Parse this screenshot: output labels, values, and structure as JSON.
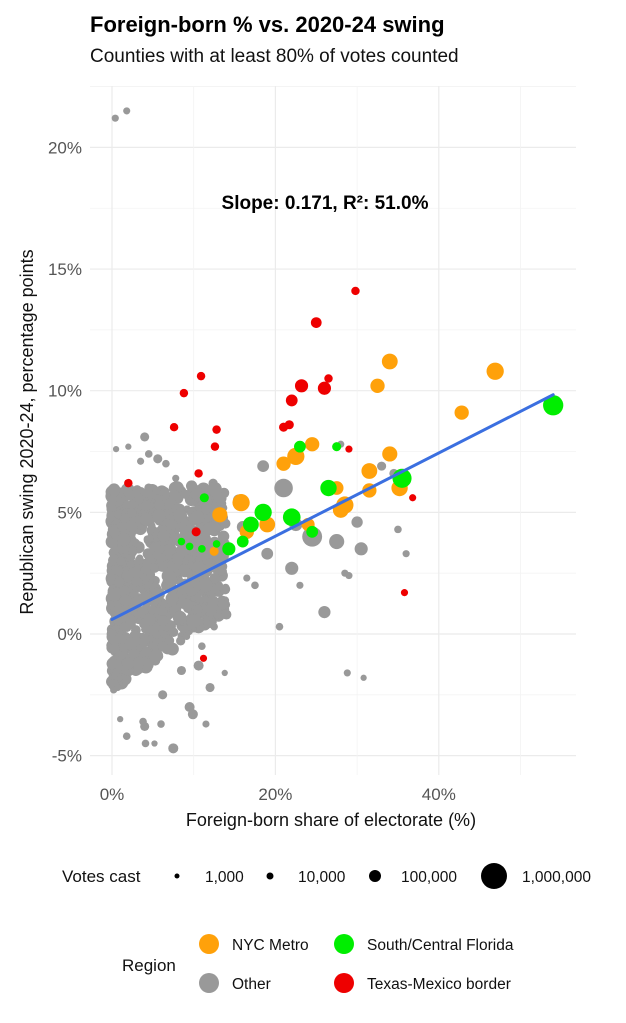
{
  "header": {
    "title": "Foreign-born % vs. 2020-24 swing",
    "subtitle": "Counties with at least 80% of votes counted"
  },
  "chart_data": {
    "type": "scatter",
    "title": "Foreign-born % vs. 2020-24 swing",
    "subtitle": "Counties with at least 80% of votes counted",
    "xlabel": "Foreign-born share of electorate (%)",
    "ylabel": "Republican swing 2020-24, percentage points",
    "xlim": [
      -2.5,
      57
    ],
    "ylim": [
      -5.8,
      22.6
    ],
    "x_ticks": [
      {
        "value": 0,
        "label": "0%"
      },
      {
        "value": 20,
        "label": "20%"
      },
      {
        "value": 40,
        "label": "40%"
      }
    ],
    "y_ticks": [
      {
        "value": -5,
        "label": "-5%"
      },
      {
        "value": 0,
        "label": "0%"
      },
      {
        "value": 5,
        "label": "5%"
      },
      {
        "value": 10,
        "label": "10%"
      },
      {
        "value": 15,
        "label": "15%"
      },
      {
        "value": 20,
        "label": "20%"
      }
    ],
    "grid": true,
    "annotation": "Slope: 0.171, R²: 51.0%",
    "regression": {
      "slope": 0.171,
      "intercept": 0.6,
      "x_range": [
        0,
        54
      ],
      "color": "#3b6fe0"
    },
    "colors": {
      "NYC Metro": "#ffa10a",
      "Other": "#999999",
      "South/Central Florida": "#00ee00",
      "Texas-Mexico border": "#ee0000"
    },
    "size_legend": {
      "title": "Votes cast",
      "entries": [
        {
          "label": "1,000",
          "votes": 1000
        },
        {
          "label": "10,000",
          "votes": 10000
        },
        {
          "label": "100,000",
          "votes": 100000
        },
        {
          "label": "1,000,000",
          "votes": 1000000
        }
      ]
    },
    "color_legend": {
      "title": "Region",
      "entries": [
        {
          "label": "NYC Metro",
          "region": "NYC Metro"
        },
        {
          "label": "South/Central Florida",
          "region": "South/Central Florida"
        },
        {
          "label": "Other",
          "region": "Other"
        },
        {
          "label": "Texas-Mexico border",
          "region": "Texas-Mexico border"
        }
      ]
    },
    "dense_cluster": {
      "region": "Other",
      "x_range": [
        0,
        14
      ],
      "y_range": [
        -2.3,
        6.0
      ],
      "note": "thousands of overlapping small counties"
    },
    "points": [
      {
        "x": 0.4,
        "y": 21.2,
        "votes": 8000,
        "region": "Other"
      },
      {
        "x": 1.8,
        "y": 21.5,
        "votes": 8000,
        "region": "Other"
      },
      {
        "x": 2.0,
        "y": 7.7,
        "votes": 5000,
        "region": "Other"
      },
      {
        "x": 4.0,
        "y": 8.1,
        "votes": 20000,
        "region": "Other"
      },
      {
        "x": 4.5,
        "y": 7.4,
        "votes": 10000,
        "region": "Other"
      },
      {
        "x": 3.5,
        "y": 7.1,
        "votes": 8000,
        "region": "Other"
      },
      {
        "x": 0.5,
        "y": 7.6,
        "votes": 5000,
        "region": "Other"
      },
      {
        "x": 5.6,
        "y": 7.2,
        "votes": 20000,
        "region": "Other"
      },
      {
        "x": 6.6,
        "y": 7.0,
        "votes": 10000,
        "region": "Other"
      },
      {
        "x": 7.8,
        "y": 6.4,
        "votes": 8000,
        "region": "Other"
      },
      {
        "x": 5.6,
        "y": 5.6,
        "votes": 8000,
        "region": "Other"
      },
      {
        "x": 15.5,
        "y": 5.5,
        "votes": 50000,
        "region": "Other"
      },
      {
        "x": 18.5,
        "y": 6.9,
        "votes": 60000,
        "region": "Other"
      },
      {
        "x": 21.0,
        "y": 6.0,
        "votes": 600000,
        "region": "Other"
      },
      {
        "x": 24.5,
        "y": 4.0,
        "votes": 900000,
        "region": "Other"
      },
      {
        "x": 27.5,
        "y": 3.8,
        "votes": 200000,
        "region": "Other"
      },
      {
        "x": 30.0,
        "y": 4.6,
        "votes": 50000,
        "region": "Other"
      },
      {
        "x": 30.5,
        "y": 3.5,
        "votes": 100000,
        "region": "Other"
      },
      {
        "x": 22.0,
        "y": 2.7,
        "votes": 100000,
        "region": "Other"
      },
      {
        "x": 26.0,
        "y": 0.9,
        "votes": 70000,
        "region": "Other"
      },
      {
        "x": 23.0,
        "y": 2.0,
        "votes": 8000,
        "region": "Other"
      },
      {
        "x": 28.5,
        "y": 2.5,
        "votes": 8000,
        "region": "Other"
      },
      {
        "x": 29.0,
        "y": 2.4,
        "votes": 8000,
        "region": "Other"
      },
      {
        "x": 20.5,
        "y": 0.3,
        "votes": 10000,
        "region": "Other"
      },
      {
        "x": 16.5,
        "y": 2.3,
        "votes": 8000,
        "region": "Other"
      },
      {
        "x": 17.5,
        "y": 2.0,
        "votes": 10000,
        "region": "Other"
      },
      {
        "x": 36.0,
        "y": 3.3,
        "votes": 8000,
        "region": "Other"
      },
      {
        "x": 35.0,
        "y": 4.3,
        "votes": 10000,
        "region": "Other"
      },
      {
        "x": 34.5,
        "y": 6.6,
        "votes": 20000,
        "region": "Other"
      },
      {
        "x": 33.0,
        "y": 6.9,
        "votes": 20000,
        "region": "Other"
      },
      {
        "x": 28.0,
        "y": 7.8,
        "votes": 8000,
        "region": "Other"
      },
      {
        "x": 30.8,
        "y": -1.8,
        "votes": 5000,
        "region": "Other"
      },
      {
        "x": 28.8,
        "y": -1.6,
        "votes": 8000,
        "region": "Other"
      },
      {
        "x": 14.0,
        "y": 0.8,
        "votes": 30000,
        "region": "Other"
      },
      {
        "x": 9.5,
        "y": -3.0,
        "votes": 30000,
        "region": "Other"
      },
      {
        "x": 9.9,
        "y": -3.3,
        "votes": 30000,
        "region": "Other"
      },
      {
        "x": 11.5,
        "y": -3.7,
        "votes": 8000,
        "region": "Other"
      },
      {
        "x": 12.0,
        "y": -2.2,
        "votes": 20000,
        "region": "Other"
      },
      {
        "x": 10.6,
        "y": -1.3,
        "votes": 30000,
        "region": "Other"
      },
      {
        "x": 3.8,
        "y": -3.6,
        "votes": 10000,
        "region": "Other"
      },
      {
        "x": 4.0,
        "y": -3.8,
        "votes": 20000,
        "region": "Other"
      },
      {
        "x": 6.0,
        "y": -3.7,
        "votes": 10000,
        "region": "Other"
      },
      {
        "x": 7.5,
        "y": -4.7,
        "votes": 30000,
        "region": "Other"
      },
      {
        "x": 5.2,
        "y": -4.5,
        "votes": 5000,
        "region": "Other"
      },
      {
        "x": 4.1,
        "y": -4.5,
        "votes": 10000,
        "region": "Other"
      },
      {
        "x": 1.8,
        "y": -4.2,
        "votes": 10000,
        "region": "Other"
      },
      {
        "x": 1.0,
        "y": -3.5,
        "votes": 5000,
        "region": "Other"
      },
      {
        "x": 0.2,
        "y": -2.3,
        "votes": 8000,
        "region": "Other"
      },
      {
        "x": 0.7,
        "y": -2.2,
        "votes": 8000,
        "region": "Other"
      },
      {
        "x": 6.2,
        "y": -2.5,
        "votes": 20000,
        "region": "Other"
      },
      {
        "x": 8.5,
        "y": -1.5,
        "votes": 20000,
        "region": "Other"
      },
      {
        "x": 13.8,
        "y": -1.6,
        "votes": 5000,
        "region": "Other"
      },
      {
        "x": 12.5,
        "y": 0.3,
        "votes": 10000,
        "region": "Other"
      },
      {
        "x": 4.2,
        "y": 5.2,
        "votes": 8000,
        "region": "Other"
      },
      {
        "x": 9.0,
        "y": 3.0,
        "votes": 8000,
        "region": "Other"
      },
      {
        "x": 9.5,
        "y": 2.5,
        "votes": 8000,
        "region": "Other"
      },
      {
        "x": 7.5,
        "y": 1.0,
        "votes": 10000,
        "region": "Other"
      },
      {
        "x": 10.5,
        "y": 1.5,
        "votes": 10000,
        "region": "Other"
      },
      {
        "x": 11.0,
        "y": -0.5,
        "votes": 10000,
        "region": "Other"
      },
      {
        "x": 13.0,
        "y": 3.2,
        "votes": 60000,
        "region": "Other"
      },
      {
        "x": 16.0,
        "y": 4.4,
        "votes": 60000,
        "region": "Other"
      },
      {
        "x": 22.5,
        "y": 4.5,
        "votes": 100000,
        "region": "Other"
      },
      {
        "x": 19.0,
        "y": 3.3,
        "votes": 60000,
        "region": "Other"
      },
      {
        "x": 34.0,
        "y": 11.2,
        "votes": 250000,
        "region": "NYC Metro"
      },
      {
        "x": 32.5,
        "y": 10.2,
        "votes": 150000,
        "region": "NYC Metro"
      },
      {
        "x": 46.9,
        "y": 10.8,
        "votes": 400000,
        "region": "NYC Metro"
      },
      {
        "x": 42.8,
        "y": 9.1,
        "votes": 150000,
        "region": "NYC Metro"
      },
      {
        "x": 34.0,
        "y": 7.4,
        "votes": 200000,
        "region": "NYC Metro"
      },
      {
        "x": 31.5,
        "y": 6.7,
        "votes": 250000,
        "region": "NYC Metro"
      },
      {
        "x": 35.2,
        "y": 6.0,
        "votes": 300000,
        "region": "NYC Metro"
      },
      {
        "x": 31.5,
        "y": 5.9,
        "votes": 150000,
        "region": "NYC Metro"
      },
      {
        "x": 28.5,
        "y": 5.3,
        "votes": 400000,
        "region": "NYC Metro"
      },
      {
        "x": 28.0,
        "y": 5.1,
        "votes": 250000,
        "region": "NYC Metro"
      },
      {
        "x": 27.5,
        "y": 6.0,
        "votes": 120000,
        "region": "NYC Metro"
      },
      {
        "x": 22.5,
        "y": 7.3,
        "votes": 400000,
        "region": "NYC Metro"
      },
      {
        "x": 21.0,
        "y": 7.0,
        "votes": 150000,
        "region": "NYC Metro"
      },
      {
        "x": 24.5,
        "y": 7.8,
        "votes": 150000,
        "region": "NYC Metro"
      },
      {
        "x": 15.8,
        "y": 5.4,
        "votes": 400000,
        "region": "NYC Metro"
      },
      {
        "x": 13.2,
        "y": 4.9,
        "votes": 200000,
        "region": "NYC Metro"
      },
      {
        "x": 19.0,
        "y": 4.5,
        "votes": 250000,
        "region": "NYC Metro"
      },
      {
        "x": 16.5,
        "y": 4.2,
        "votes": 150000,
        "region": "NYC Metro"
      },
      {
        "x": 12.5,
        "y": 3.4,
        "votes": 20000,
        "region": "NYC Metro"
      },
      {
        "x": 24.0,
        "y": 4.5,
        "votes": 100000,
        "region": "NYC Metro"
      },
      {
        "x": 54.0,
        "y": 9.4,
        "votes": 1000000,
        "region": "South/Central Florida"
      },
      {
        "x": 35.5,
        "y": 6.4,
        "votes": 700000,
        "region": "South/Central Florida"
      },
      {
        "x": 26.5,
        "y": 6.0,
        "votes": 300000,
        "region": "South/Central Florida"
      },
      {
        "x": 23.0,
        "y": 7.7,
        "votes": 60000,
        "region": "South/Central Florida"
      },
      {
        "x": 27.5,
        "y": 7.7,
        "votes": 20000,
        "region": "South/Central Florida"
      },
      {
        "x": 18.5,
        "y": 5.0,
        "votes": 400000,
        "region": "South/Central Florida"
      },
      {
        "x": 22.0,
        "y": 4.8,
        "votes": 450000,
        "region": "South/Central Florida"
      },
      {
        "x": 17.0,
        "y": 4.5,
        "votes": 250000,
        "region": "South/Central Florida"
      },
      {
        "x": 16.0,
        "y": 3.8,
        "votes": 60000,
        "region": "South/Central Florida"
      },
      {
        "x": 14.3,
        "y": 3.5,
        "votes": 100000,
        "region": "South/Central Florida"
      },
      {
        "x": 11.3,
        "y": 5.6,
        "votes": 20000,
        "region": "South/Central Florida"
      },
      {
        "x": 24.5,
        "y": 4.2,
        "votes": 60000,
        "region": "South/Central Florida"
      },
      {
        "x": 8.5,
        "y": 3.8,
        "votes": 10000,
        "region": "South/Central Florida"
      },
      {
        "x": 9.5,
        "y": 3.6,
        "votes": 10000,
        "region": "South/Central Florida"
      },
      {
        "x": 11.0,
        "y": 3.5,
        "votes": 10000,
        "region": "South/Central Florida"
      },
      {
        "x": 12.8,
        "y": 3.7,
        "votes": 10000,
        "region": "South/Central Florida"
      },
      {
        "x": 29.8,
        "y": 14.1,
        "votes": 15000,
        "region": "Texas-Mexico border"
      },
      {
        "x": 25.0,
        "y": 12.8,
        "votes": 40000,
        "region": "Texas-Mexico border"
      },
      {
        "x": 23.2,
        "y": 10.2,
        "votes": 100000,
        "region": "Texas-Mexico border"
      },
      {
        "x": 26.0,
        "y": 10.1,
        "votes": 100000,
        "region": "Texas-Mexico border"
      },
      {
        "x": 26.5,
        "y": 10.5,
        "votes": 15000,
        "region": "Texas-Mexico border"
      },
      {
        "x": 22.0,
        "y": 9.6,
        "votes": 60000,
        "region": "Texas-Mexico border"
      },
      {
        "x": 10.9,
        "y": 10.6,
        "votes": 15000,
        "region": "Texas-Mexico border"
      },
      {
        "x": 8.8,
        "y": 9.9,
        "votes": 15000,
        "region": "Texas-Mexico border"
      },
      {
        "x": 7.6,
        "y": 8.5,
        "votes": 15000,
        "region": "Texas-Mexico border"
      },
      {
        "x": 12.8,
        "y": 8.4,
        "votes": 15000,
        "region": "Texas-Mexico border"
      },
      {
        "x": 12.6,
        "y": 7.7,
        "votes": 15000,
        "region": "Texas-Mexico border"
      },
      {
        "x": 21.0,
        "y": 8.5,
        "votes": 20000,
        "region": "Texas-Mexico border"
      },
      {
        "x": 21.7,
        "y": 8.6,
        "votes": 20000,
        "region": "Texas-Mexico border"
      },
      {
        "x": 10.6,
        "y": 6.6,
        "votes": 15000,
        "region": "Texas-Mexico border"
      },
      {
        "x": 2.0,
        "y": 6.2,
        "votes": 15000,
        "region": "Texas-Mexico border"
      },
      {
        "x": 10.3,
        "y": 4.2,
        "votes": 20000,
        "region": "Texas-Mexico border"
      },
      {
        "x": 29.0,
        "y": 7.6,
        "votes": 8000,
        "region": "Texas-Mexico border"
      },
      {
        "x": 36.8,
        "y": 5.6,
        "votes": 8000,
        "region": "Texas-Mexico border"
      },
      {
        "x": 35.8,
        "y": 1.7,
        "votes": 8000,
        "region": "Texas-Mexico border"
      },
      {
        "x": 11.2,
        "y": -1.0,
        "votes": 8000,
        "region": "Texas-Mexico border"
      }
    ]
  }
}
